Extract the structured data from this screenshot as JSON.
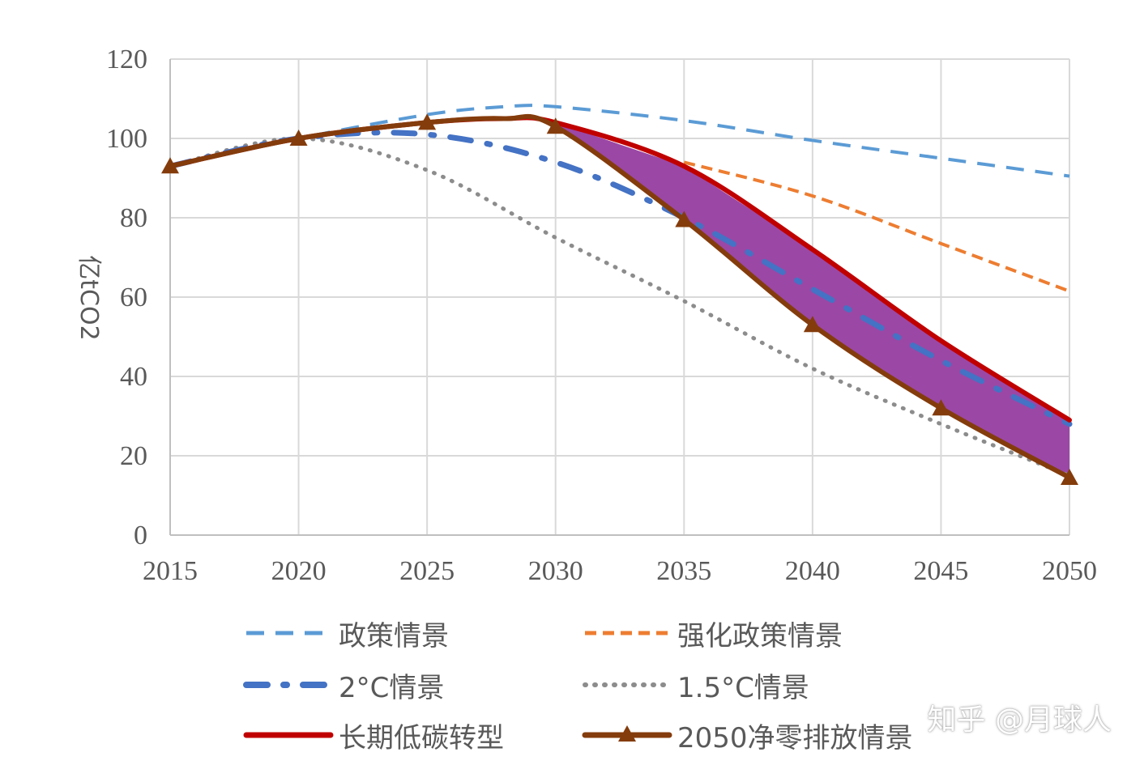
{
  "chart_data": {
    "type": "line",
    "ylabel": "亿tCO2",
    "xlabel": "",
    "x": [
      2015,
      2020,
      2025,
      2030,
      2035,
      2040,
      2045,
      2050
    ],
    "xlim": [
      2015,
      2050
    ],
    "ylim": [
      0,
      120
    ],
    "yticks": [
      0,
      20,
      40,
      60,
      80,
      100,
      120
    ],
    "grid": true,
    "legend_position": "bottom",
    "shaded_region": {
      "between": [
        "长期低碳转型",
        "2050净零排放情景"
      ],
      "color": "#9b47a6"
    },
    "series": [
      {
        "name": "政策情景",
        "style": "dashed",
        "color": "#5b9bd5",
        "points": [
          [
            2015,
            93
          ],
          [
            2020,
            100
          ],
          [
            2025,
            106
          ],
          [
            2028,
            108
          ],
          [
            2030,
            108
          ],
          [
            2035,
            104.5
          ],
          [
            2040,
            99.5
          ],
          [
            2045,
            95
          ],
          [
            2050,
            90.5
          ]
        ]
      },
      {
        "name": "强化政策情景",
        "style": "dashed-short",
        "color": "#ed7d31",
        "points": [
          [
            2035,
            94
          ],
          [
            2040,
            85.5
          ],
          [
            2045,
            73.5
          ],
          [
            2050,
            61.5
          ]
        ]
      },
      {
        "name": "2°C情景",
        "style": "dash-dot",
        "color": "#4472c4",
        "points": [
          [
            2015,
            93
          ],
          [
            2020,
            100
          ],
          [
            2025,
            101
          ],
          [
            2030,
            94
          ],
          [
            2035,
            80
          ],
          [
            2040,
            62
          ],
          [
            2045,
            44
          ],
          [
            2050,
            28
          ]
        ]
      },
      {
        "name": "1.5°C情景",
        "style": "dotted",
        "color": "#8c8c8c",
        "points": [
          [
            2015,
            93
          ],
          [
            2020,
            100
          ],
          [
            2025,
            92
          ],
          [
            2030,
            75
          ],
          [
            2035,
            59
          ],
          [
            2040,
            42
          ],
          [
            2045,
            28
          ],
          [
            2050,
            15
          ]
        ]
      },
      {
        "name": "长期低碳转型",
        "style": "solid",
        "color": "#c00000",
        "points": [
          [
            2015,
            93
          ],
          [
            2020,
            100
          ],
          [
            2025,
            104
          ],
          [
            2028,
            105
          ],
          [
            2030,
            104
          ],
          [
            2035,
            93
          ],
          [
            2040,
            72
          ],
          [
            2045,
            49
          ],
          [
            2050,
            29
          ]
        ]
      },
      {
        "name": "2050净零排放情景",
        "style": "solid-triangle",
        "color": "#843c0c",
        "points": [
          [
            2015,
            93
          ],
          [
            2020,
            100
          ],
          [
            2025,
            104
          ],
          [
            2028,
            105
          ],
          [
            2030,
            103
          ],
          [
            2035,
            79.5
          ],
          [
            2040,
            53
          ],
          [
            2045,
            32
          ],
          [
            2050,
            14.5
          ]
        ],
        "markers_at": [
          2015,
          2020,
          2025,
          2030,
          2035,
          2040,
          2045,
          2050
        ]
      }
    ]
  },
  "watermark": "知乎 @月球人"
}
